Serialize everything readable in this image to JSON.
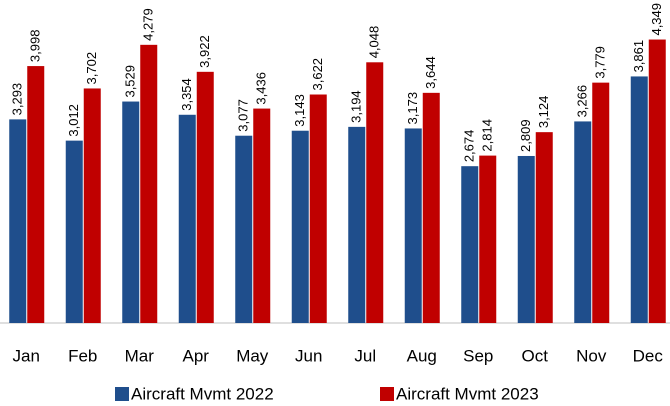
{
  "chart_data": {
    "type": "bar",
    "categories": [
      "Jan",
      "Feb",
      "Mar",
      "Apr",
      "May",
      "Jun",
      "Jul",
      "Aug",
      "Sep",
      "Oct",
      "Nov",
      "Dec"
    ],
    "series": [
      {
        "name": "Aircraft Mvmt 2022",
        "color": "#1f4e8c",
        "values": [
          3293,
          3012,
          3529,
          3354,
          3077,
          3143,
          3194,
          3173,
          2674,
          2809,
          3266,
          3861
        ],
        "value_labels": [
          "3,293",
          "3,012",
          "3,529",
          "3,354",
          "3,077",
          "3,143",
          "3,194",
          "3,173",
          "2,674",
          "2,809",
          "3,266",
          "3,861"
        ]
      },
      {
        "name": "Aircraft Mvmt 2023",
        "color": "#c00000",
        "values": [
          3998,
          3702,
          4279,
          3922,
          3436,
          3622,
          4048,
          3644,
          2814,
          3124,
          3779,
          4349
        ],
        "value_labels": [
          "3,998",
          "3,702",
          "4,279",
          "3,922",
          "3,436",
          "3,622",
          "4,048",
          "3,644",
          "2,814",
          "3,124",
          "3,779",
          "4,349"
        ]
      }
    ],
    "ylim": [
      600,
      4700
    ],
    "legend": "bottom"
  }
}
